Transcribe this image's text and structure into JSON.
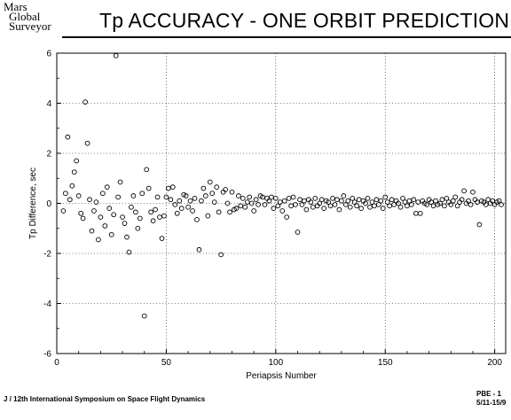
{
  "header": {
    "org_line1": "Mars",
    "org_line2": "Global",
    "org_line3": "Surveyor",
    "title": "Tp ACCURACY - ONE ORBIT PREDICTION"
  },
  "footer": {
    "left": "J / 12th International Symposium on Space Flight Dynamics",
    "right_line1": "PBE - 1",
    "right_line2": "5/11-15/9"
  },
  "chart_data": {
    "type": "scatter",
    "title": "Tp ACCURACY - ONE ORBIT PREDICTION",
    "xlabel": "Periapsis Number",
    "ylabel": "Tp Difference, sec",
    "xlim": [
      0,
      205
    ],
    "ylim": [
      -6,
      6
    ],
    "xticks": [
      0,
      50,
      100,
      150,
      200
    ],
    "yticks": [
      -6,
      -4,
      -2,
      0,
      2,
      4,
      6
    ],
    "xtick_labels": [
      "0",
      "50",
      "100",
      "150",
      "200"
    ],
    "ytick_labels": [
      "-6",
      "-4",
      "-2",
      "0",
      "2",
      "4",
      "6"
    ],
    "marker": "open-circle",
    "grid": "dotted-partial",
    "points": [
      [
        3,
        -0.3
      ],
      [
        4,
        0.4
      ],
      [
        5,
        2.65
      ],
      [
        6,
        0.15
      ],
      [
        7,
        0.7
      ],
      [
        8,
        1.25
      ],
      [
        9,
        1.7
      ],
      [
        10,
        0.3
      ],
      [
        11,
        -0.4
      ],
      [
        12,
        -0.6
      ],
      [
        13,
        4.05
      ],
      [
        14,
        2.4
      ],
      [
        15,
        0.15
      ],
      [
        16,
        -1.1
      ],
      [
        17,
        -0.3
      ],
      [
        18,
        0.05
      ],
      [
        19,
        -1.45
      ],
      [
        20,
        -0.55
      ],
      [
        21,
        0.4
      ],
      [
        22,
        -0.9
      ],
      [
        23,
        0.65
      ],
      [
        24,
        -0.2
      ],
      [
        25,
        -1.25
      ],
      [
        26,
        -0.45
      ],
      [
        27,
        5.9
      ],
      [
        28,
        0.25
      ],
      [
        29,
        0.85
      ],
      [
        30,
        -0.55
      ],
      [
        31,
        -0.8
      ],
      [
        32,
        -1.35
      ],
      [
        33,
        -1.95
      ],
      [
        34,
        -0.15
      ],
      [
        35,
        0.3
      ],
      [
        36,
        -0.35
      ],
      [
        37,
        -1.0
      ],
      [
        38,
        -0.6
      ],
      [
        39,
        0.4
      ],
      [
        40,
        -4.5
      ],
      [
        41,
        1.35
      ],
      [
        42,
        0.6
      ],
      [
        43,
        -0.35
      ],
      [
        44,
        -0.7
      ],
      [
        45,
        -0.25
      ],
      [
        46,
        0.25
      ],
      [
        47,
        -0.55
      ],
      [
        48,
        -1.4
      ],
      [
        49,
        -0.5
      ],
      [
        50,
        0.25
      ],
      [
        51,
        0.6
      ],
      [
        52,
        0.15
      ],
      [
        53,
        0.65
      ],
      [
        54,
        -0.05
      ],
      [
        55,
        -0.4
      ],
      [
        56,
        0.1
      ],
      [
        57,
        -0.2
      ],
      [
        58,
        0.35
      ],
      [
        59,
        0.3
      ],
      [
        60,
        -0.15
      ],
      [
        61,
        0.1
      ],
      [
        62,
        -0.3
      ],
      [
        63,
        0.2
      ],
      [
        64,
        -0.65
      ],
      [
        65,
        -1.85
      ],
      [
        66,
        0.1
      ],
      [
        67,
        0.6
      ],
      [
        68,
        0.3
      ],
      [
        69,
        -0.5
      ],
      [
        70,
        0.85
      ],
      [
        71,
        0.4
      ],
      [
        72,
        0.05
      ],
      [
        73,
        0.65
      ],
      [
        74,
        -0.35
      ],
      [
        75,
        -2.05
      ],
      [
        76,
        0.45
      ],
      [
        77,
        0.55
      ],
      [
        78,
        0.0
      ],
      [
        79,
        -0.35
      ],
      [
        80,
        0.45
      ],
      [
        81,
        -0.25
      ],
      [
        82,
        -0.2
      ],
      [
        83,
        0.3
      ],
      [
        84,
        -0.1
      ],
      [
        85,
        0.2
      ],
      [
        86,
        -0.15
      ],
      [
        87,
        0.05
      ],
      [
        88,
        0.25
      ],
      [
        89,
        0.0
      ],
      [
        90,
        -0.3
      ],
      [
        91,
        0.15
      ],
      [
        92,
        -0.05
      ],
      [
        93,
        0.3
      ],
      [
        94,
        0.25
      ],
      [
        95,
        -0.05
      ],
      [
        96,
        0.2
      ],
      [
        97,
        0.1
      ],
      [
        98,
        0.25
      ],
      [
        99,
        -0.2
      ],
      [
        100,
        0.2
      ],
      [
        101,
        -0.1
      ],
      [
        102,
        0.05
      ],
      [
        103,
        -0.3
      ],
      [
        104,
        0.1
      ],
      [
        105,
        -0.55
      ],
      [
        106,
        0.2
      ],
      [
        107,
        -0.1
      ],
      [
        108,
        0.25
      ],
      [
        109,
        -0.05
      ],
      [
        110,
        -1.15
      ],
      [
        111,
        0.15
      ],
      [
        112,
        -0.05
      ],
      [
        113,
        0.1
      ],
      [
        114,
        -0.25
      ],
      [
        115,
        0.15
      ],
      [
        116,
        0.05
      ],
      [
        117,
        -0.15
      ],
      [
        118,
        0.2
      ],
      [
        119,
        -0.1
      ],
      [
        120,
        0.0
      ],
      [
        121,
        0.15
      ],
      [
        122,
        -0.2
      ],
      [
        123,
        0.1
      ],
      [
        124,
        0.05
      ],
      [
        125,
        -0.1
      ],
      [
        126,
        0.2
      ],
      [
        127,
        -0.05
      ],
      [
        128,
        0.15
      ],
      [
        129,
        -0.25
      ],
      [
        130,
        0.1
      ],
      [
        131,
        0.3
      ],
      [
        132,
        -0.05
      ],
      [
        133,
        0.1
      ],
      [
        134,
        -0.15
      ],
      [
        135,
        0.2
      ],
      [
        136,
        0.05
      ],
      [
        137,
        -0.1
      ],
      [
        138,
        0.15
      ],
      [
        139,
        -0.2
      ],
      [
        140,
        0.1
      ],
      [
        141,
        0.0
      ],
      [
        142,
        0.2
      ],
      [
        143,
        -0.15
      ],
      [
        144,
        0.05
      ],
      [
        145,
        -0.1
      ],
      [
        146,
        0.15
      ],
      [
        147,
        -0.05
      ],
      [
        148,
        0.1
      ],
      [
        149,
        -0.2
      ],
      [
        150,
        0.25
      ],
      [
        151,
        0.05
      ],
      [
        152,
        -0.1
      ],
      [
        153,
        0.15
      ],
      [
        154,
        -0.05
      ],
      [
        155,
        0.1
      ],
      [
        156,
        0.0
      ],
      [
        157,
        -0.15
      ],
      [
        158,
        0.2
      ],
      [
        159,
        0.05
      ],
      [
        160,
        -0.1
      ],
      [
        161,
        0.1
      ],
      [
        162,
        -0.05
      ],
      [
        163,
        0.15
      ],
      [
        164,
        -0.4
      ],
      [
        165,
        0.05
      ],
      [
        166,
        -0.4
      ],
      [
        167,
        0.1
      ],
      [
        168,
        0.0
      ],
      [
        169,
        -0.05
      ],
      [
        170,
        0.15
      ],
      [
        171,
        0.05
      ],
      [
        172,
        -0.1
      ],
      [
        173,
        0.1
      ],
      [
        174,
        -0.05
      ],
      [
        175,
        0.0
      ],
      [
        176,
        0.15
      ],
      [
        177,
        -0.1
      ],
      [
        178,
        0.2
      ],
      [
        179,
        0.05
      ],
      [
        180,
        -0.05
      ],
      [
        181,
        0.1
      ],
      [
        182,
        0.25
      ],
      [
        183,
        -0.1
      ],
      [
        184,
        0.05
      ],
      [
        185,
        0.15
      ],
      [
        186,
        0.5
      ],
      [
        187,
        0.0
      ],
      [
        188,
        0.1
      ],
      [
        189,
        -0.05
      ],
      [
        190,
        0.45
      ],
      [
        191,
        0.15
      ],
      [
        192,
        0.05
      ],
      [
        193,
        -0.85
      ],
      [
        194,
        0.1
      ],
      [
        195,
        0.05
      ],
      [
        196,
        -0.05
      ],
      [
        197,
        0.15
      ],
      [
        198,
        0.0
      ],
      [
        199,
        0.1
      ],
      [
        200,
        -0.05
      ],
      [
        201,
        0.05
      ],
      [
        202,
        0.1
      ],
      [
        203,
        -0.05
      ]
    ]
  }
}
